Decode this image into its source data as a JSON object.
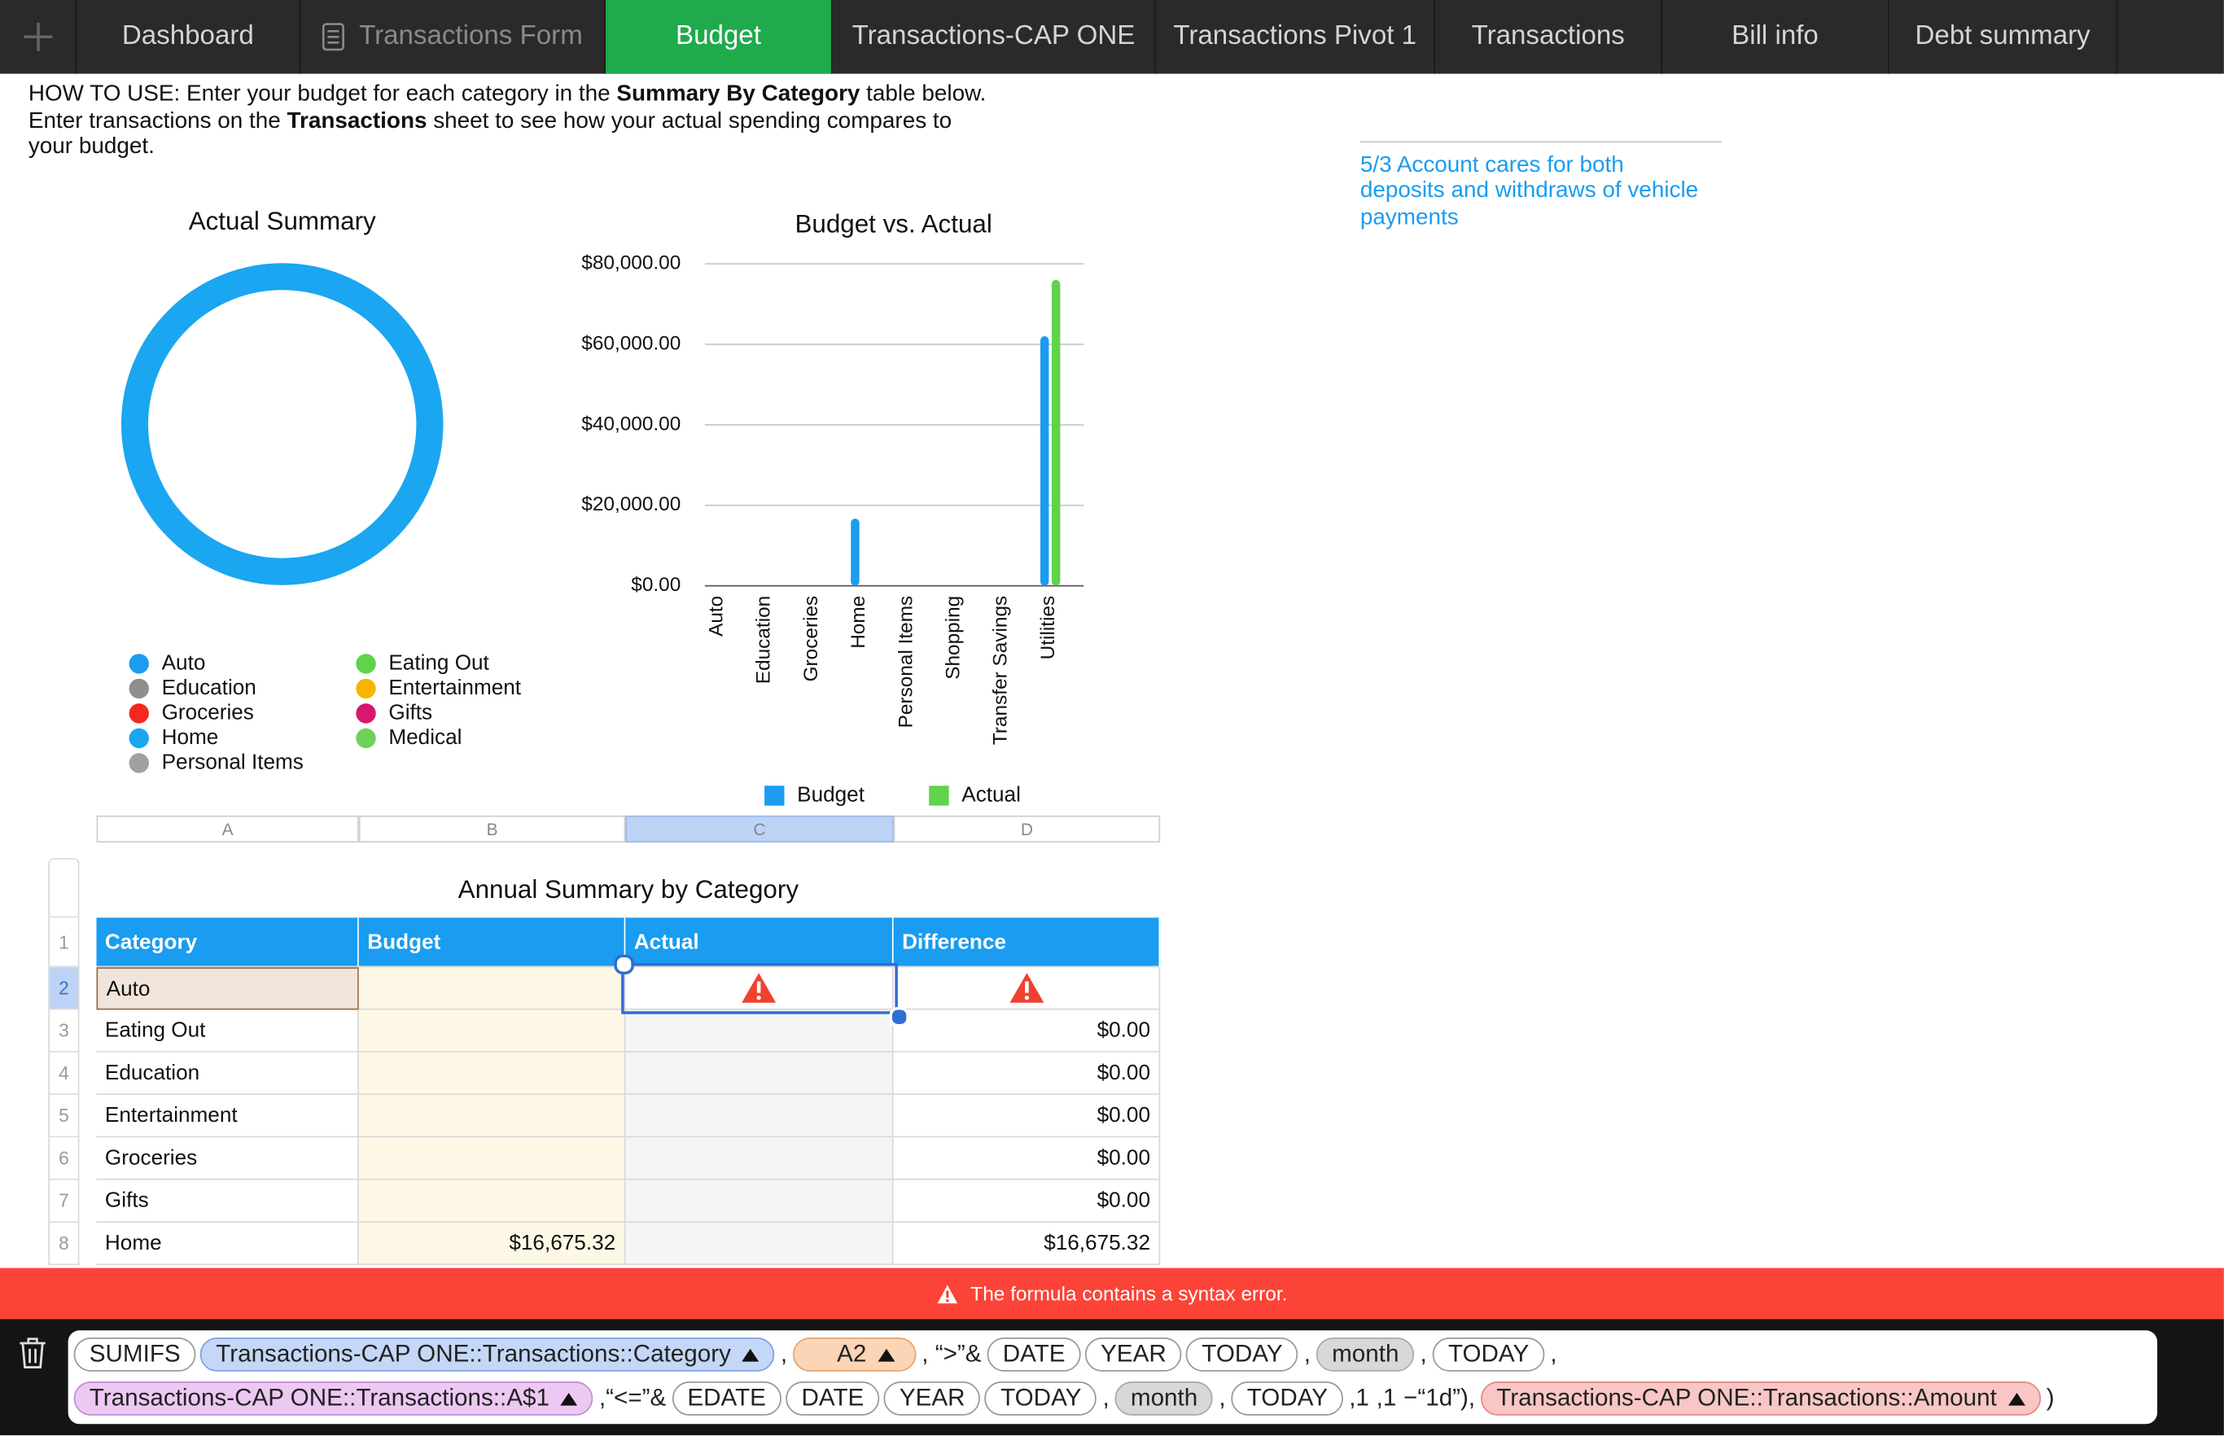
{
  "tabs": [
    "Dashboard",
    "Transactions Form",
    "Budget",
    "Transactions-CAP ONE",
    "Transactions Pivot 1",
    "Transactions",
    "Bill info",
    "Debt summary"
  ],
  "active_tab": 2,
  "dim_tab": 1,
  "instructions": [
    [
      {
        "text": "HOW TO USE: Enter your budget for each category in the "
      },
      {
        "text": "Summary By Category",
        "bold": true
      },
      {
        "text": " table below."
      }
    ],
    [
      {
        "text": "Enter transactions on the "
      },
      {
        "text": "Transactions",
        "bold": true
      },
      {
        "text": " sheet to see how your actual spending compares to"
      }
    ],
    [
      {
        "text": "your budget."
      }
    ]
  ],
  "note": [
    "5/3 Account cares for both",
    "deposits and withdraws of vehicle",
    "payments"
  ],
  "chart_data": [
    {
      "type": "donut",
      "title": "Actual Summary",
      "categories": [
        "Auto",
        "Education",
        "Groceries",
        "Home",
        "Personal Items",
        "Eating Out",
        "Entertainment",
        "Gifts",
        "Medical"
      ],
      "colors": [
        "#1a9cf0",
        "#8e8e8e",
        "#f5271f",
        "#1aa6f0",
        "#a0a0a0",
        "#5fd34a",
        "#f7b500",
        "#d6186e",
        "#6fd35a"
      ],
      "values": [
        0,
        0,
        0,
        100,
        0,
        0,
        0,
        0,
        0
      ]
    },
    {
      "type": "bar",
      "title": "Budget vs. Actual",
      "categories": [
        "Auto",
        "Education",
        "Groceries",
        "Home",
        "Personal Items",
        "Shopping",
        "Transfer Savings",
        "Utilities"
      ],
      "series": [
        {
          "name": "Budget",
          "color": "#1a9cf0",
          "values": [
            0,
            0,
            0,
            16675.32,
            0,
            0,
            0,
            62000
          ]
        },
        {
          "name": "Actual",
          "color": "#5fd34a",
          "values": [
            0,
            0,
            0,
            0,
            0,
            0,
            0,
            76000
          ]
        }
      ],
      "ylim": [
        0,
        80000
      ],
      "yticks": [
        {
          "value": 0,
          "label": "$0.00"
        },
        {
          "value": 20000,
          "label": "$20,000.00"
        },
        {
          "value": 40000,
          "label": "$40,000.00"
        },
        {
          "value": 60000,
          "label": "$60,000.00"
        },
        {
          "value": 80000,
          "label": "$80,000.00"
        }
      ],
      "grid": true
    }
  ],
  "table": {
    "title": "Annual Summary by Category",
    "column_letters": [
      "A",
      "B",
      "C",
      "D"
    ],
    "row_numbers": [
      1,
      2,
      3,
      4,
      5,
      6,
      7,
      8
    ],
    "selected_row": 1,
    "selected_column": 2,
    "header": [
      "Category",
      "Budget",
      "Actual",
      "Difference"
    ],
    "rows": [
      {
        "cells": [
          "Auto",
          null,
          null,
          null
        ],
        "error_columns": [
          2,
          3
        ]
      },
      {
        "cells": [
          "Eating Out",
          null,
          null,
          "$0.00"
        ]
      },
      {
        "cells": [
          "Education",
          null,
          null,
          "$0.00"
        ]
      },
      {
        "cells": [
          "Entertainment",
          null,
          null,
          "$0.00"
        ]
      },
      {
        "cells": [
          "Groceries",
          null,
          null,
          "$0.00"
        ]
      },
      {
        "cells": [
          "Gifts",
          null,
          null,
          "$0.00"
        ]
      },
      {
        "cells": [
          "Home",
          "$16,675.32",
          null,
          "$16,675.32"
        ]
      }
    ]
  },
  "error_message": "The formula contains a syntax error.",
  "formula": {
    "lines": [
      [
        {
          "text": "SUMIFS",
          "style": "fn"
        },
        {
          "text": "Transactions-CAP ONE::Transactions::Category",
          "style": "ref-blue"
        },
        {
          "text": ",",
          "style": "plain"
        },
        {
          "text": "A2",
          "style": "ref-orange"
        },
        {
          "text": ", “>”&",
          "style": "plain"
        },
        {
          "text": "DATE",
          "style": "fn"
        },
        {
          "text": "YEAR",
          "style": "fn"
        },
        {
          "text": "TODAY",
          "style": "fn"
        },
        {
          "text": ",",
          "style": "plain"
        },
        {
          "text": "month",
          "style": "arg"
        },
        {
          "text": ",",
          "style": "plain"
        },
        {
          "text": "TODAY",
          "style": "fn"
        },
        {
          "text": ",",
          "style": "plain"
        }
      ],
      [
        {
          "text": "Transactions-CAP ONE::Transactions::A$1",
          "style": "ref-purple"
        },
        {
          "text": ",“<=”&",
          "style": "plain"
        },
        {
          "text": "EDATE",
          "style": "fn"
        },
        {
          "text": "DATE",
          "style": "fn"
        },
        {
          "text": "YEAR",
          "style": "fn"
        },
        {
          "text": "TODAY",
          "style": "fn"
        },
        {
          "text": ",",
          "style": "plain"
        },
        {
          "text": "month",
          "style": "arg"
        },
        {
          "text": ",",
          "style": "plain"
        },
        {
          "text": "TODAY",
          "style": "fn"
        },
        {
          "text": ",1",
          "style": "plain"
        },
        {
          "text": ",1",
          "style": "plain"
        },
        {
          "text": "−“1d”),",
          "style": "plain"
        },
        {
          "text": "Transactions-CAP ONE::Transactions::Amount",
          "style": "ref-red"
        },
        {
          "text": ")",
          "style": "plain"
        }
      ]
    ]
  }
}
